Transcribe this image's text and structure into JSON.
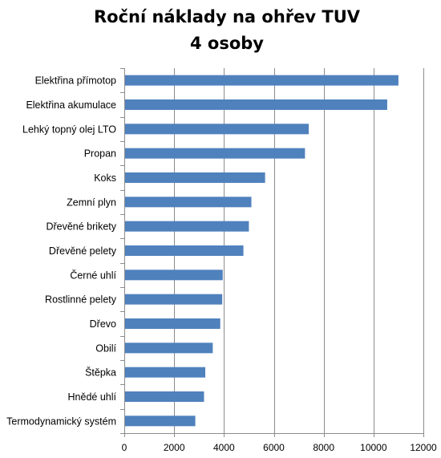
{
  "chart_data": {
    "type": "bar",
    "orientation": "horizontal",
    "title": [
      "Roční náklady na ohřev TUV",
      "4 osoby"
    ],
    "categories": [
      "Elektřina přímotop",
      "Elektřina akumulace",
      "Lehký topný olej LTO",
      "Propan",
      "Koks",
      "Zemní plyn",
      "Dřevěné brikety",
      "Dřevěné pelety",
      "Černé uhlí",
      "Rostlinné pelety",
      "Dřevo",
      "Obilí",
      "Štěpka",
      "Hnědé uhlí",
      "Termodynamický systém"
    ],
    "values": [
      11000,
      10550,
      7400,
      7250,
      5650,
      5100,
      5000,
      4780,
      3950,
      3930,
      3850,
      3550,
      3250,
      3200,
      2850
    ],
    "xlim": [
      0,
      12000
    ],
    "xticks": [
      0,
      2000,
      4000,
      6000,
      8000,
      10000,
      12000
    ],
    "xtick_labels": [
      "0",
      "2000",
      "4000",
      "6000",
      "8000",
      "10000",
      "12000"
    ],
    "xlabel": "",
    "ylabel": "",
    "grid": "vertical",
    "legend": "none",
    "colors": {
      "bar": "#4f81bd",
      "grid": "#8c8c8c"
    }
  }
}
